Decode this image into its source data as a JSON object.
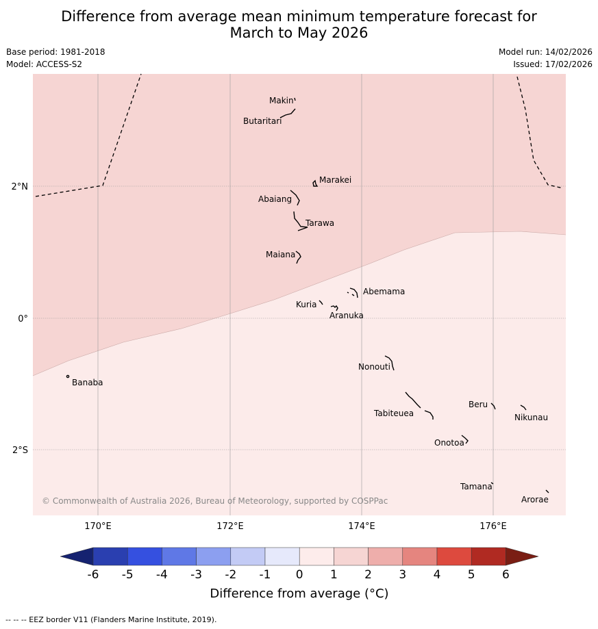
{
  "title_line1": "Difference from average mean minimum temperature forecast for",
  "title_line2": "March to May 2026",
  "base_period": "Base period: 1981-2018",
  "model": "Model: ACCESS-S2",
  "model_run": "Model run: 14/02/2026",
  "issued": "Issued: 17/02/2026",
  "copyright": "© Commonwealth of Australia 2026, Bureau of Meteorology, supported by COSPPac",
  "axes": {
    "lon_ticks": [
      "170°E",
      "172°E",
      "174°E",
      "176°E"
    ],
    "lat_ticks": [
      "2°N",
      "0°",
      "2°S"
    ]
  },
  "places": [
    "Makin",
    "Butaritari",
    "Marakei",
    "Abaiang",
    "Tarawa",
    "Maiana",
    "Abemama",
    "Kuria",
    "Aranuka",
    "Nonouti",
    "Banaba",
    "Tabiteuea",
    "Beru",
    "Nikunau",
    "Onotoa",
    "Tamana",
    "Arorae"
  ],
  "colorbar": {
    "labels": [
      "-6",
      "-5",
      "-4",
      "-3",
      "-2",
      "-1",
      "0",
      "1",
      "2",
      "3",
      "4",
      "5",
      "6"
    ],
    "colors": [
      "#2a3fb0",
      "#3550e0",
      "#5f78e6",
      "#8c9ff0",
      "#c3cbf5",
      "#e6e9fb",
      "#fdeceb",
      "#f6d5d3",
      "#eeaeab",
      "#e5857f",
      "#dd4a3e",
      "#b02a22"
    ],
    "under_color": "#152270",
    "over_color": "#7a1e14",
    "title": "Difference from average (°C)"
  },
  "legend_note": "-- -- -- EEZ border V11 (Flanders Marine Institute, 2019).",
  "map_colors": {
    "band_1_2": "#f6d5d3",
    "band_0_1": "#fcebea"
  }
}
